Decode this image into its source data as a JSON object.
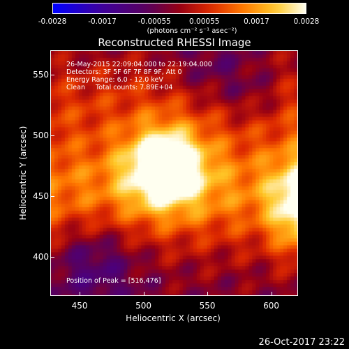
{
  "colorbar": {
    "ticks": [
      "-0.0028",
      "-0.0017",
      "-0.00055",
      "0.00055",
      "0.0017",
      "0.0028"
    ],
    "unit": "(photons cm⁻² s⁻¹ asec⁻²)",
    "min": -0.0028,
    "max": 0.0028
  },
  "chart_data": {
    "type": "heatmap",
    "title": "Reconstructed RHESSI Image",
    "xlabel": "Heliocentric X (arcsec)",
    "ylabel": "Heliocentric Y (arcsec)",
    "xlim": [
      427,
      621
    ],
    "ylim": [
      368,
      570
    ],
    "xticks": [
      450,
      500,
      550,
      600
    ],
    "yticks": [
      400,
      450,
      500,
      550
    ],
    "peak": [
      516,
      476
    ],
    "annotations": {
      "time": "26-May-2015 22:09:04.000 to 22:19:04.000",
      "detectors": "Detectors: 3F 5F 6F 7F 8F 9F, Att 0",
      "energy": "Energy Range: 6.0 - 12.0 keV",
      "clean": "Clean     Total counts: 7.89E+04",
      "peak_label": "Position of Peak = [516,476]"
    }
  },
  "footer": "26-Oct-2017 23:22"
}
